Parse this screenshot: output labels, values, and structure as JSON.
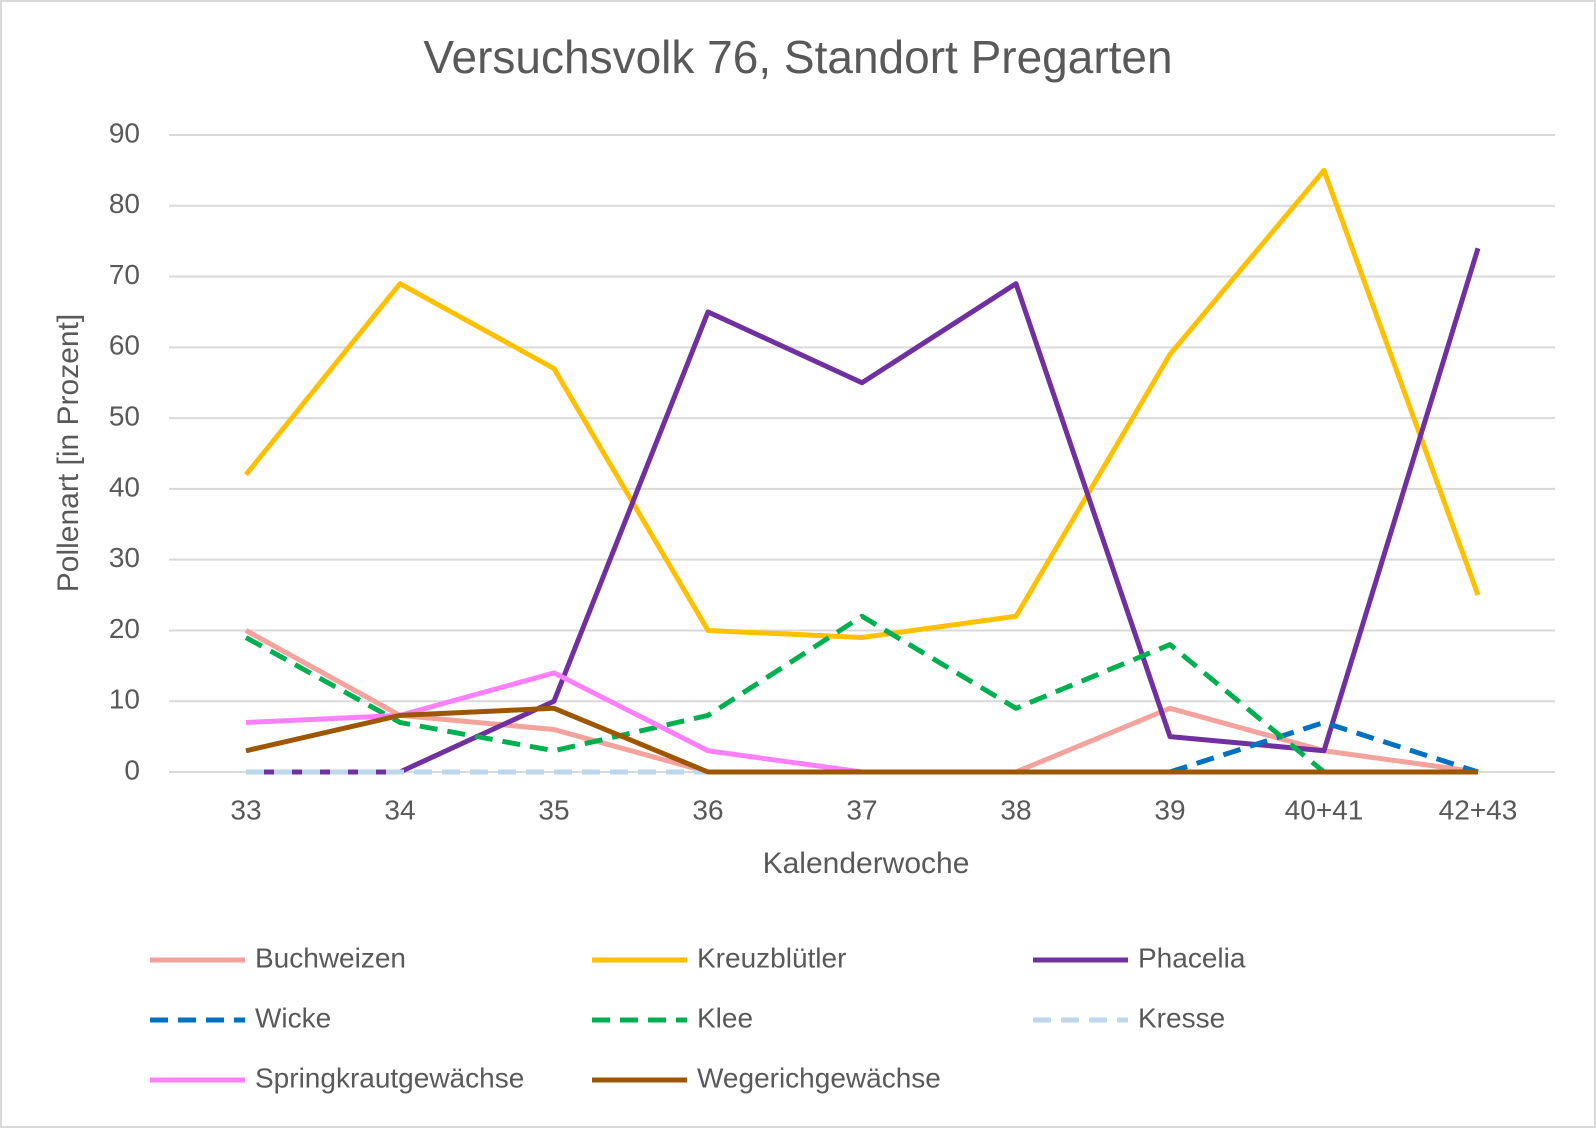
{
  "chart_data": {
    "type": "line",
    "title": "Versuchsvolk 76, Standort Pregarten",
    "xlabel": "Kalenderwoche",
    "ylabel": "Pollenart [in Prozent]",
    "categories": [
      "33",
      "34",
      "35",
      "36",
      "37",
      "38",
      "39",
      "40+41",
      "42+43"
    ],
    "ylim": [
      0,
      90
    ],
    "yticks": [
      0,
      10,
      20,
      30,
      40,
      50,
      60,
      70,
      80,
      90
    ],
    "grid": true,
    "legend": "bottom",
    "series": [
      {
        "name": "Buchweizen",
        "color": "#f4a29c",
        "values": [
          20,
          8,
          6,
          0,
          0,
          0,
          9,
          3,
          0
        ]
      },
      {
        "name": "Kreuzblütler",
        "color": "#ffc000",
        "values": [
          42,
          69,
          57,
          20,
          19,
          22,
          59,
          85,
          25
        ]
      },
      {
        "name": "Phacelia",
        "color": "#7030a0",
        "values": [
          0,
          0,
          10,
          65,
          55,
          69,
          5,
          3,
          74
        ]
      },
      {
        "name": "Wicke",
        "color": "#0070c0",
        "dashed": true,
        "values": [
          0,
          0,
          0,
          0,
          0,
          0,
          0,
          7,
          0
        ]
      },
      {
        "name": "Klee",
        "color": "#00b050",
        "dashed": true,
        "values": [
          19,
          7,
          3,
          8,
          22,
          9,
          18,
          0,
          0
        ]
      },
      {
        "name": "Kresse",
        "color": "#bdd7ee",
        "dashed": true,
        "values": [
          0,
          0,
          0,
          0,
          0,
          0,
          0,
          0,
          0
        ]
      },
      {
        "name": "Springkrautgewächse",
        "color": "#ff80ff",
        "values": [
          7,
          8,
          14,
          3,
          0,
          0,
          0,
          0,
          0
        ]
      },
      {
        "name": "Wegerichgewächse",
        "color": "#9c5700",
        "values": [
          3,
          8,
          9,
          0,
          0,
          0,
          0,
          0,
          0
        ]
      }
    ]
  }
}
